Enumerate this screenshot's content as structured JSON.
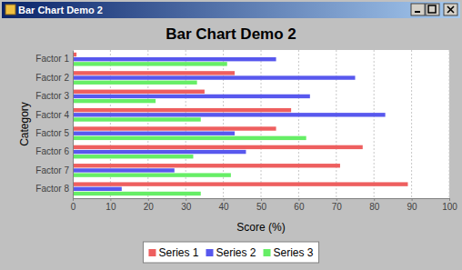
{
  "chart_data": {
    "type": "bar",
    "title": "Bar Chart Demo 2",
    "x_label": "Score (%)",
    "y_label": "Category",
    "orientation": "horizontal",
    "grid": true,
    "legend": "bottom",
    "categories": [
      "Factor 1",
      "Factor 2",
      "Factor 3",
      "Factor 4",
      "Factor 5",
      "Factor 6",
      "Factor 7",
      "Factor 8"
    ],
    "series": [
      {
        "name": "Series 1",
        "color": "#ee5f5f",
        "values": [
          1,
          43,
          35,
          58,
          54,
          77,
          71,
          89
        ]
      },
      {
        "name": "Series 2",
        "color": "#5858ee",
        "values": [
          54,
          75,
          63,
          83,
          43,
          46,
          27,
          13
        ]
      },
      {
        "name": "Series 3",
        "color": "#66ee66",
        "values": [
          41,
          33,
          22,
          34,
          62,
          32,
          42,
          34
        ]
      }
    ],
    "xlim": [
      0,
      100
    ],
    "xticks": [
      0,
      10,
      20,
      30,
      40,
      50,
      60,
      70,
      80,
      90,
      100
    ]
  }
}
